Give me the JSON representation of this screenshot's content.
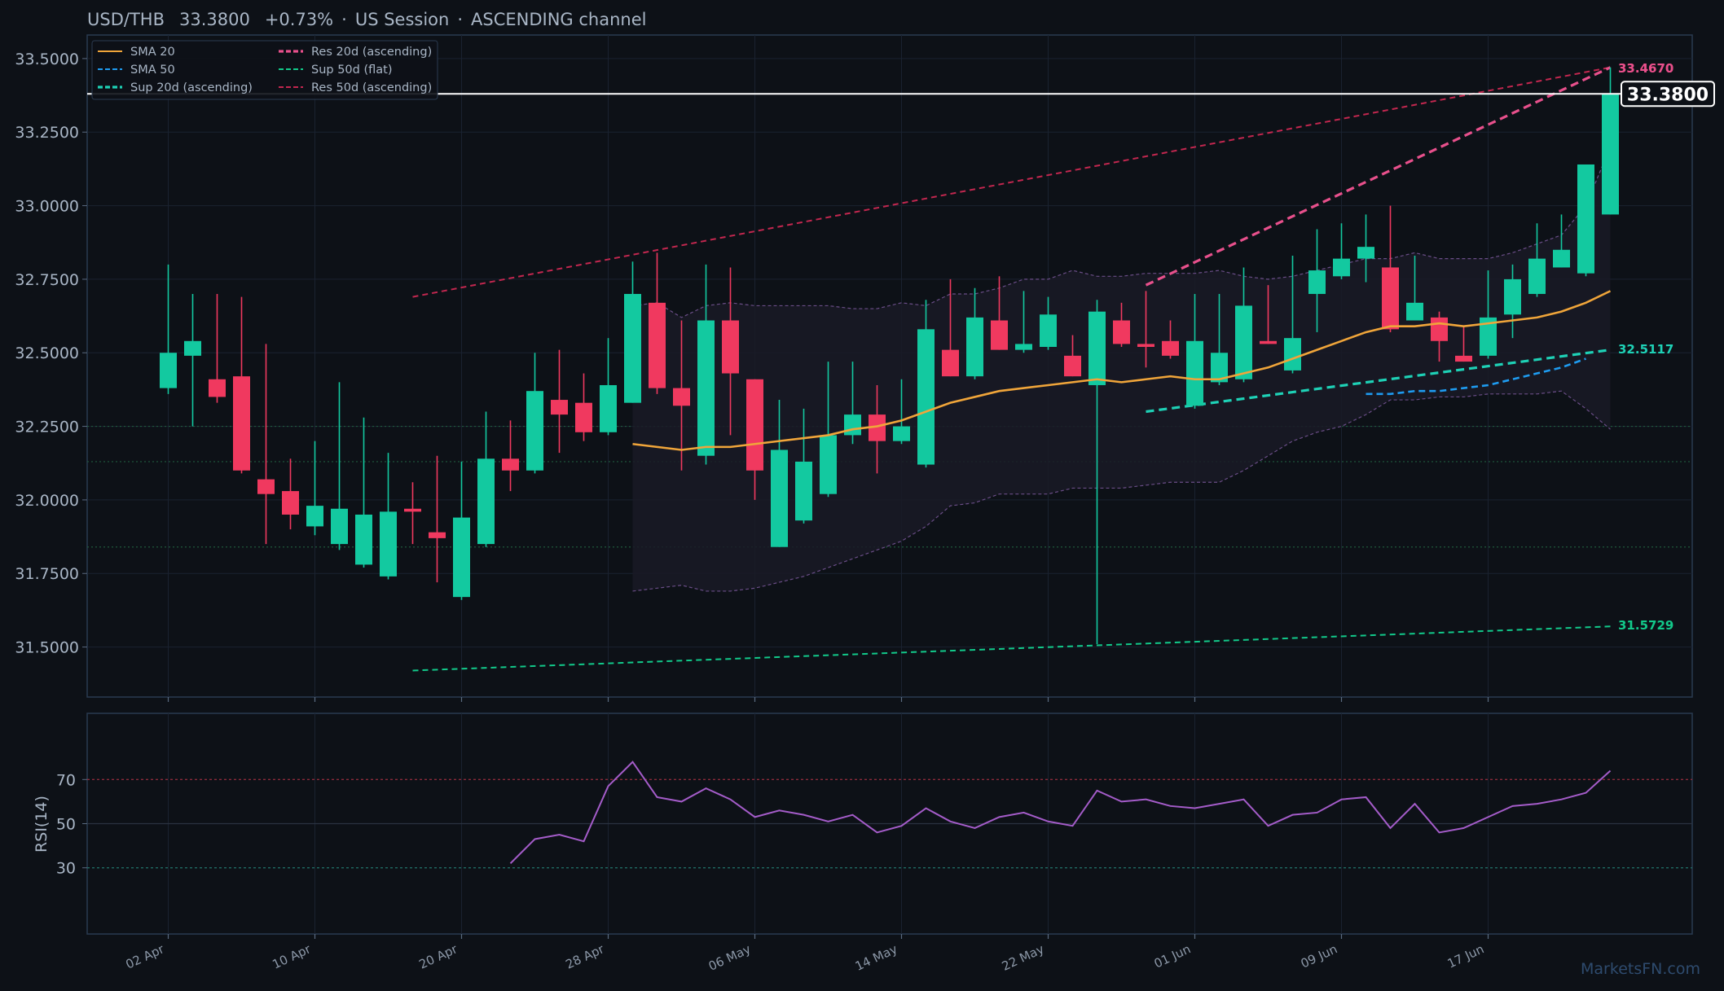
{
  "header": {
    "pair": "USD/THB",
    "price": "33.3800",
    "change": "+0.73%",
    "session": "US Session",
    "channel": "ASCENDING channel"
  },
  "watermark": "MarketsFN.com",
  "colors": {
    "background": "#0d1117",
    "up": "#13c9a0",
    "down": "#f0395f",
    "sma20": "#f0a53a",
    "sma50": "#1e9bf0",
    "sup20": "#1ed1b6",
    "res20": "#e8508c",
    "sup50": "#12c98a",
    "res50": "#c2274f",
    "rsi": "#a45cc9"
  },
  "chart_data": [
    {
      "type": "candlestick",
      "title": "USD/THB",
      "ylim": [
        31.33,
        33.58
      ],
      "yticks": [
        "31.5000",
        "31.7500",
        "32.0000",
        "32.2500",
        "32.5000",
        "32.7500",
        "33.0000",
        "33.2500",
        "33.5000"
      ],
      "x_ticks": [
        {
          "label": "02 Apr",
          "index": 0
        },
        {
          "label": "10 Apr",
          "index": 6
        },
        {
          "label": "20 Apr",
          "index": 12
        },
        {
          "label": "28 Apr",
          "index": 18
        },
        {
          "label": "06 May",
          "index": 24
        },
        {
          "label": "14 May",
          "index": 30
        },
        {
          "label": "22 May",
          "index": 36
        },
        {
          "label": "01 Jun",
          "index": 42
        },
        {
          "label": "09 Jun",
          "index": 48
        },
        {
          "label": "17 Jun",
          "index": 54
        }
      ],
      "candles": [
        {
          "o": 32.38,
          "h": 32.8,
          "l": 32.36,
          "c": 32.5
        },
        {
          "o": 32.49,
          "h": 32.7,
          "l": 32.25,
          "c": 32.54
        },
        {
          "o": 32.41,
          "h": 32.7,
          "l": 32.33,
          "c": 32.35
        },
        {
          "o": 32.42,
          "h": 32.69,
          "l": 32.09,
          "c": 32.1
        },
        {
          "o": 32.07,
          "h": 32.53,
          "l": 31.85,
          "c": 32.02
        },
        {
          "o": 32.03,
          "h": 32.14,
          "l": 31.9,
          "c": 31.95
        },
        {
          "o": 31.91,
          "h": 32.2,
          "l": 31.88,
          "c": 31.98
        },
        {
          "o": 31.85,
          "h": 32.4,
          "l": 31.83,
          "c": 31.97
        },
        {
          "o": 31.78,
          "h": 32.28,
          "l": 31.77,
          "c": 31.95
        },
        {
          "o": 31.74,
          "h": 32.16,
          "l": 31.73,
          "c": 31.96
        },
        {
          "o": 31.97,
          "h": 32.06,
          "l": 31.85,
          "c": 31.96
        },
        {
          "o": 31.89,
          "h": 32.15,
          "l": 31.72,
          "c": 31.87
        },
        {
          "o": 31.67,
          "h": 32.13,
          "l": 31.66,
          "c": 31.94
        },
        {
          "o": 31.85,
          "h": 32.3,
          "l": 31.84,
          "c": 32.14
        },
        {
          "o": 32.14,
          "h": 32.27,
          "l": 32.03,
          "c": 32.1
        },
        {
          "o": 32.1,
          "h": 32.5,
          "l": 32.09,
          "c": 32.37
        },
        {
          "o": 32.34,
          "h": 32.51,
          "l": 32.16,
          "c": 32.29
        },
        {
          "o": 32.33,
          "h": 32.43,
          "l": 32.2,
          "c": 32.23
        },
        {
          "o": 32.23,
          "h": 32.55,
          "l": 32.22,
          "c": 32.39
        },
        {
          "o": 32.33,
          "h": 32.81,
          "l": 32.33,
          "c": 32.7
        },
        {
          "o": 32.67,
          "h": 32.84,
          "l": 32.36,
          "c": 32.38
        },
        {
          "o": 32.38,
          "h": 32.61,
          "l": 32.1,
          "c": 32.32
        },
        {
          "o": 32.15,
          "h": 32.8,
          "l": 32.12,
          "c": 32.61
        },
        {
          "o": 32.61,
          "h": 32.79,
          "l": 32.22,
          "c": 32.43
        },
        {
          "o": 32.41,
          "h": 32.41,
          "l": 32.0,
          "c": 32.1
        },
        {
          "o": 31.84,
          "h": 32.34,
          "l": 31.84,
          "c": 32.17
        },
        {
          "o": 31.93,
          "h": 32.31,
          "l": 31.92,
          "c": 32.13
        },
        {
          "o": 32.02,
          "h": 32.47,
          "l": 32.01,
          "c": 32.22
        },
        {
          "o": 32.22,
          "h": 32.47,
          "l": 32.19,
          "c": 32.29
        },
        {
          "o": 32.29,
          "h": 32.39,
          "l": 32.09,
          "c": 32.2
        },
        {
          "o": 32.2,
          "h": 32.41,
          "l": 32.19,
          "c": 32.25
        },
        {
          "o": 32.12,
          "h": 32.68,
          "l": 32.11,
          "c": 32.58
        },
        {
          "o": 32.51,
          "h": 32.75,
          "l": 32.42,
          "c": 32.42
        },
        {
          "o": 32.42,
          "h": 32.72,
          "l": 32.41,
          "c": 32.62
        },
        {
          "o": 32.61,
          "h": 32.76,
          "l": 32.51,
          "c": 32.51
        },
        {
          "o": 32.51,
          "h": 32.71,
          "l": 32.5,
          "c": 32.53
        },
        {
          "o": 32.52,
          "h": 32.69,
          "l": 32.51,
          "c": 32.63
        },
        {
          "o": 32.49,
          "h": 32.56,
          "l": 32.42,
          "c": 32.42
        },
        {
          "o": 32.39,
          "h": 32.68,
          "l": 31.51,
          "c": 32.64
        },
        {
          "o": 32.61,
          "h": 32.67,
          "l": 32.52,
          "c": 32.53
        },
        {
          "o": 32.53,
          "h": 32.71,
          "l": 32.45,
          "c": 32.52
        },
        {
          "o": 32.54,
          "h": 32.61,
          "l": 32.48,
          "c": 32.49
        },
        {
          "o": 32.32,
          "h": 32.7,
          "l": 32.31,
          "c": 32.54
        },
        {
          "o": 32.4,
          "h": 32.7,
          "l": 32.39,
          "c": 32.5
        },
        {
          "o": 32.41,
          "h": 32.79,
          "l": 32.4,
          "c": 32.66
        },
        {
          "o": 32.54,
          "h": 32.73,
          "l": 32.53,
          "c": 32.53
        },
        {
          "o": 32.44,
          "h": 32.83,
          "l": 32.43,
          "c": 32.55
        },
        {
          "o": 32.7,
          "h": 32.92,
          "l": 32.57,
          "c": 32.78
        },
        {
          "o": 32.76,
          "h": 32.94,
          "l": 32.75,
          "c": 32.82
        },
        {
          "o": 32.82,
          "h": 32.97,
          "l": 32.74,
          "c": 32.86
        },
        {
          "o": 32.79,
          "h": 33.0,
          "l": 32.57,
          "c": 32.58
        },
        {
          "o": 32.61,
          "h": 32.83,
          "l": 32.61,
          "c": 32.67
        },
        {
          "o": 32.62,
          "h": 32.64,
          "l": 32.47,
          "c": 32.54
        },
        {
          "o": 32.49,
          "h": 32.59,
          "l": 32.47,
          "c": 32.47
        },
        {
          "o": 32.49,
          "h": 32.78,
          "l": 32.48,
          "c": 32.62
        },
        {
          "o": 32.63,
          "h": 32.8,
          "l": 32.55,
          "c": 32.75
        },
        {
          "o": 32.7,
          "h": 32.94,
          "l": 32.69,
          "c": 32.82
        },
        {
          "o": 32.79,
          "h": 32.97,
          "l": 32.79,
          "c": 32.85
        },
        {
          "o": 32.77,
          "h": 33.14,
          "l": 32.76,
          "c": 33.14
        },
        {
          "o": 32.97,
          "h": 33.47,
          "l": 32.97,
          "c": 33.38
        }
      ],
      "sma20": {
        "start": 19,
        "values": [
          32.19,
          32.18,
          32.17,
          32.18,
          32.18,
          32.19,
          32.2,
          32.21,
          32.22,
          32.24,
          32.25,
          32.27,
          32.3,
          32.33,
          32.35,
          32.37,
          32.38,
          32.39,
          32.4,
          32.41,
          32.4,
          32.41,
          32.42,
          32.41,
          32.41,
          32.43,
          32.45,
          32.48,
          32.51,
          32.54,
          32.57,
          32.59,
          32.59,
          32.6,
          32.59,
          32.6,
          32.61,
          32.62,
          32.64,
          32.67,
          32.71
        ]
      },
      "sma50": {
        "start": 49,
        "values": [
          32.36,
          32.36,
          32.37,
          32.37,
          32.38,
          32.39,
          32.41,
          32.43,
          32.45,
          32.48
        ]
      },
      "bollinger": {
        "start": 19,
        "upper": [
          32.66,
          32.67,
          32.62,
          32.66,
          32.67,
          32.66,
          32.66,
          32.66,
          32.66,
          32.65,
          32.65,
          32.67,
          32.66,
          32.7,
          32.7,
          32.72,
          32.75,
          32.75,
          32.78,
          32.76,
          32.76,
          32.77,
          32.77,
          32.77,
          32.78,
          32.76,
          32.75,
          32.76,
          32.78,
          32.8,
          32.82,
          32.82,
          32.84,
          32.82,
          32.82,
          32.82,
          32.84,
          32.87,
          32.9,
          33.0,
          33.2
        ],
        "lower": [
          31.69,
          31.7,
          31.71,
          31.69,
          31.69,
          31.7,
          31.72,
          31.74,
          31.77,
          31.8,
          31.83,
          31.86,
          31.91,
          31.98,
          31.99,
          32.02,
          32.02,
          32.02,
          32.04,
          32.04,
          32.04,
          32.05,
          32.06,
          32.06,
          32.06,
          32.1,
          32.15,
          32.2,
          32.23,
          32.25,
          32.29,
          32.34,
          32.34,
          32.35,
          32.35,
          32.36,
          32.36,
          32.36,
          32.37,
          32.31,
          32.24
        ]
      },
      "channels": {
        "res50": {
          "start": [
            10,
            32.69
          ],
          "end": [
            59,
            33.47
          ],
          "label": "Res 50d (ascending)"
        },
        "sup50": {
          "start": [
            10,
            31.42
          ],
          "end": [
            59,
            31.57
          ],
          "label": "Sup 50d (flat)"
        },
        "res20": {
          "start": [
            40,
            32.73
          ],
          "end": [
            59,
            33.47
          ],
          "label": "Res 20d (ascending)"
        },
        "sup20": {
          "start": [
            40,
            32.3
          ],
          "end": [
            59,
            32.51
          ],
          "label": "Sup 20d (ascending)"
        }
      },
      "horizontal_levels": [
        32.25,
        32.13,
        31.84
      ],
      "current_price": 33.38,
      "current_price_label": "33.3800",
      "right_labels": [
        {
          "text": "33.4670",
          "value": 33.467,
          "color": "#c2274f"
        },
        {
          "text": "33.4670",
          "value": 33.467,
          "color": "#e8508c"
        },
        {
          "text": "32.5117",
          "value": 32.5117,
          "color": "#1ed1b6"
        },
        {
          "text": "31.5729",
          "value": 31.5729,
          "color": "#12c98a"
        }
      ],
      "legend": [
        {
          "label": "SMA 20",
          "color": "#f0a53a",
          "style": "solid"
        },
        {
          "label": "Res 20d (ascending)",
          "color": "#e8508c",
          "style": "dash-bold"
        },
        {
          "label": "SMA 50",
          "color": "#1e9bf0",
          "style": "dash"
        },
        {
          "label": "Sup 50d (flat)",
          "color": "#12c98a",
          "style": "dash"
        },
        {
          "label": "Sup 20d (ascending)",
          "color": "#1ed1b6",
          "style": "dash-bold"
        },
        {
          "label": "Res 50d (ascending)",
          "color": "#c2274f",
          "style": "dash"
        }
      ],
      "legend_position": "top-left"
    },
    {
      "type": "line",
      "ylabel": "RSI(14)",
      "ylim": [
        0,
        100
      ],
      "yticks": [
        30,
        50,
        70
      ],
      "levels": [
        70,
        50,
        30
      ],
      "start": 14,
      "values": [
        32,
        43,
        45,
        42,
        67,
        78,
        62,
        60,
        66,
        61,
        53,
        56,
        54,
        51,
        54,
        46,
        49,
        57,
        51,
        48,
        53,
        55,
        51,
        49,
        65,
        60,
        61,
        58,
        57,
        59,
        61,
        49,
        54,
        55,
        61,
        62,
        48,
        59,
        46,
        48,
        53,
        58,
        59,
        61,
        64,
        74
      ]
    }
  ]
}
